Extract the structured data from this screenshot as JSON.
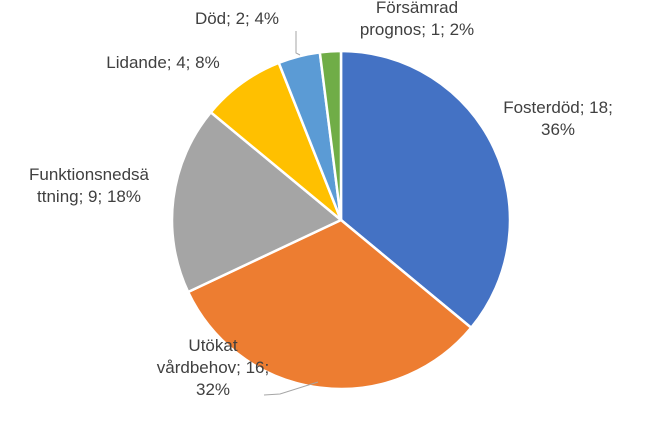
{
  "chart_data": {
    "type": "pie",
    "title": "",
    "slices": [
      {
        "category": "Fosterdöd",
        "value": 18,
        "percent": "36%",
        "color": "#4472C4",
        "label_lines": [
          "Fosterdöd; 18;",
          "36%"
        ]
      },
      {
        "category": "Utökat vårdbehov",
        "value": 16,
        "percent": "32%",
        "color": "#ED7D31",
        "label_lines": [
          "Utökat",
          "vårdbehov; 16;",
          "32%"
        ]
      },
      {
        "category": "Funktionsnedsättning",
        "value": 9,
        "percent": "18%",
        "color": "#A5A5A5",
        "label_lines": [
          "Funktionsnedsä",
          "ttning; 9; 18%"
        ]
      },
      {
        "category": "Lidande",
        "value": 4,
        "percent": "8%",
        "color": "#FFC000",
        "label_lines": [
          "Lidande; 4; 8%"
        ]
      },
      {
        "category": "Död",
        "value": 2,
        "percent": "4%",
        "color": "#5B9BD5",
        "label_lines": [
          "Död; 2; 4%"
        ]
      },
      {
        "category": "Försämrad prognos",
        "value": 1,
        "percent": "2%",
        "color": "#70AD47",
        "label_lines": [
          "Försämrad",
          "prognos; 1; 2%"
        ]
      }
    ]
  }
}
